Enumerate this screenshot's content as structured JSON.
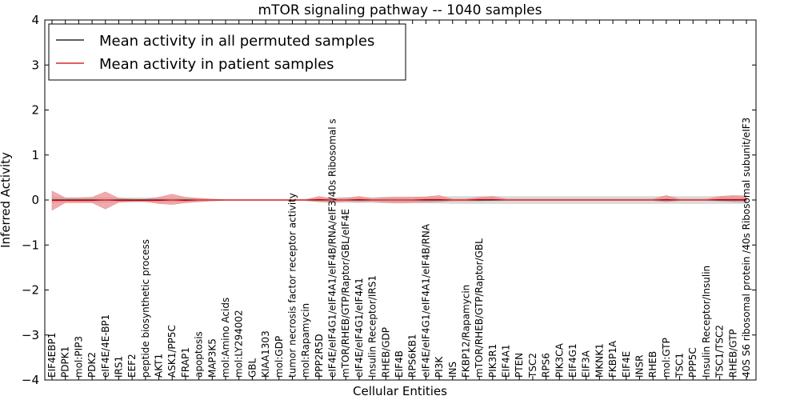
{
  "chart_data": {
    "type": "line",
    "title": "mTOR signaling pathway -- 1040 samples",
    "xlabel": "Cellular Entities",
    "ylabel": "Inferred Activity",
    "ylim": [
      -4,
      4
    ],
    "yticks": [
      4,
      3,
      2,
      1,
      0,
      -1,
      -2,
      -3,
      -4
    ],
    "ytick_labels": [
      "4",
      "3",
      "2",
      "1",
      "0",
      "−1",
      "−2",
      "−3",
      "−4"
    ],
    "categories": [
      "EIF4EBP1",
      "PDPK1",
      "mol:PIP3",
      "PDK2",
      "eIF4E/4E-BP1",
      "IRS1",
      "EEF2",
      "peptide biosynthetic process",
      "AKT1",
      "ASK1/PP5C",
      "FRAP1",
      "apoptosis",
      "MAP3K5",
      "mol:Amino Acids",
      "mol:LY294002",
      "GBL",
      "KIAA1303",
      "mol:GDP",
      "tumor necrosis factor receptor activity",
      "mol:Rapamycin",
      "PPP2R5D",
      "eIF4E/eIF4G1/eIF4A1/eIF4B/RNA/eIF3/40s Ribosomal s",
      "mTOR/RHEB/GTP/Raptor/GBL/eIF4E",
      "eIF4E/eIF4G1/eIF4A1",
      "Insulin Receptor/IRS1",
      "RHEB/GDP",
      "EIF4B",
      "RPS6KB1",
      "eIF4E/eIF4G1/eIF4A1/eIF4B/RNA",
      "PI3K",
      "INS",
      "FKBP12/Rapamycin",
      "mTOR/RHEB/GTP/Raptor/GBL",
      "PIK3R1",
      "EIF4A1",
      "PTEN",
      "TSC2",
      "RPS6",
      "PIK3CA",
      "EIF4G1",
      "EIF3A",
      "MKNK1",
      "FKBP1A",
      "EIF4E",
      "INSR",
      "RHEB",
      "mol:GTP",
      "TSC1",
      "PPP5C",
      "Insulin Receptor/Insulin",
      "TSC1/TSC2",
      "RHEB/GTP",
      "40S S6 ribosomal protein /40s Ribosomal subunit/eIF3"
    ],
    "series": [
      {
        "name": "Mean activity in all permuted samples",
        "color": "#000000",
        "values": [
          0.0,
          0.0,
          0.0,
          0.0,
          0.0,
          0.0,
          0.0,
          0.0,
          0.0,
          0.0,
          0.0,
          0.0,
          0.0,
          0.0,
          0.0,
          0.0,
          0.0,
          0.0,
          0.0,
          0.0,
          0.0,
          0.0,
          0.0,
          0.0,
          0.0,
          0.0,
          0.0,
          0.0,
          0.0,
          0.0,
          0.0,
          0.0,
          0.0,
          0.0,
          0.0,
          0.0,
          0.0,
          0.0,
          0.0,
          0.0,
          0.0,
          0.0,
          0.0,
          0.0,
          0.0,
          0.0,
          0.0,
          0.0,
          0.0,
          0.0,
          0.0,
          0.0,
          0.0
        ],
        "band_lower": [
          -0.07,
          -0.05,
          -0.05,
          -0.05,
          -0.06,
          -0.05,
          -0.05,
          -0.05,
          -0.05,
          -0.05,
          -0.05,
          -0.03,
          -0.02,
          -0.01,
          -0.01,
          -0.01,
          -0.01,
          -0.01,
          -0.01,
          -0.02,
          -0.04,
          -0.05,
          -0.06,
          -0.06,
          -0.06,
          -0.07,
          -0.07,
          -0.07,
          -0.07,
          -0.07,
          -0.08,
          -0.08,
          -0.08,
          -0.08,
          -0.08,
          -0.08,
          -0.08,
          -0.08,
          -0.08,
          -0.08,
          -0.08,
          -0.08,
          -0.08,
          -0.08,
          -0.08,
          -0.08,
          -0.08,
          -0.08,
          -0.08,
          -0.08,
          -0.08,
          -0.08,
          -0.08
        ],
        "band_upper": [
          0.07,
          0.05,
          0.05,
          0.05,
          0.06,
          0.05,
          0.05,
          0.05,
          0.05,
          0.05,
          0.05,
          0.03,
          0.02,
          0.01,
          0.01,
          0.01,
          0.01,
          0.01,
          0.01,
          0.02,
          0.04,
          0.05,
          0.06,
          0.06,
          0.06,
          0.07,
          0.07,
          0.07,
          0.07,
          0.07,
          0.08,
          0.08,
          0.08,
          0.08,
          0.08,
          0.08,
          0.08,
          0.08,
          0.08,
          0.08,
          0.08,
          0.08,
          0.08,
          0.08,
          0.08,
          0.08,
          0.08,
          0.08,
          0.08,
          0.08,
          0.08,
          0.08,
          0.08
        ]
      },
      {
        "name": "Mean activity in patient samples",
        "color": "#cc0000",
        "values": [
          -0.01,
          -0.01,
          -0.01,
          -0.01,
          0.0,
          -0.01,
          -0.01,
          -0.01,
          -0.01,
          0.0,
          -0.01,
          0.0,
          0.0,
          0.0,
          0.0,
          0.0,
          0.0,
          0.0,
          0.0,
          0.0,
          0.01,
          0.0,
          0.0,
          0.01,
          0.0,
          0.0,
          0.0,
          0.0,
          0.01,
          0.01,
          0.0,
          0.0,
          0.01,
          0.01,
          0.0,
          0.0,
          0.0,
          0.0,
          0.0,
          0.0,
          0.0,
          0.0,
          0.0,
          0.0,
          0.0,
          0.0,
          0.01,
          0.0,
          0.0,
          0.0,
          0.01,
          0.01,
          0.01
        ],
        "band_lower": [
          -0.23,
          -0.06,
          -0.06,
          -0.06,
          -0.2,
          -0.05,
          -0.03,
          -0.03,
          -0.08,
          -0.1,
          -0.06,
          -0.04,
          -0.02,
          -0.01,
          -0.01,
          -0.01,
          -0.01,
          -0.01,
          -0.01,
          -0.01,
          -0.04,
          -0.05,
          -0.03,
          -0.04,
          -0.03,
          -0.05,
          -0.06,
          -0.05,
          -0.05,
          -0.04,
          -0.02,
          -0.02,
          -0.02,
          -0.01,
          -0.01,
          -0.01,
          -0.01,
          -0.01,
          -0.01,
          -0.01,
          -0.01,
          -0.01,
          -0.01,
          -0.01,
          -0.01,
          -0.01,
          -0.04,
          -0.01,
          -0.01,
          -0.01,
          -0.02,
          -0.04,
          -0.04
        ],
        "band_upper": [
          0.2,
          0.05,
          0.05,
          0.06,
          0.18,
          0.04,
          0.02,
          0.02,
          0.06,
          0.13,
          0.06,
          0.04,
          0.02,
          0.01,
          0.01,
          0.01,
          0.01,
          0.01,
          0.01,
          0.01,
          0.08,
          0.03,
          0.04,
          0.08,
          0.03,
          0.05,
          0.06,
          0.06,
          0.07,
          0.1,
          0.02,
          0.02,
          0.06,
          0.08,
          0.02,
          0.02,
          0.02,
          0.02,
          0.02,
          0.02,
          0.02,
          0.02,
          0.02,
          0.02,
          0.02,
          0.02,
          0.1,
          0.02,
          0.02,
          0.02,
          0.08,
          0.1,
          0.09
        ]
      }
    ],
    "legend": {
      "placement": "top-left"
    },
    "grid": false,
    "colors": {
      "permuted_band": "#d3d3d3",
      "patient_band": "#e8888a",
      "axis": "#000000"
    }
  }
}
